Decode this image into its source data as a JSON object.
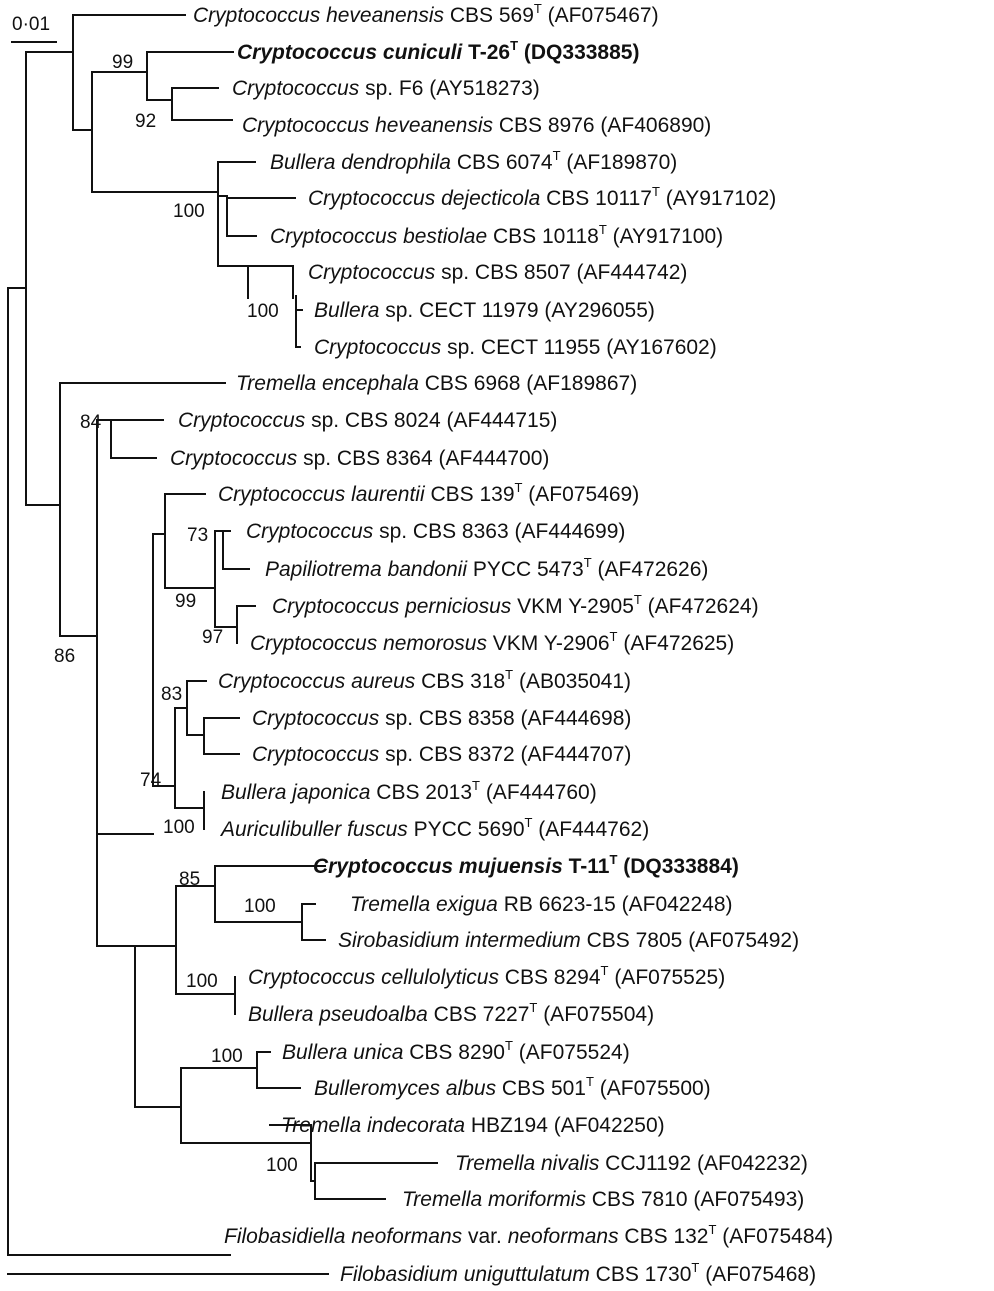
{
  "scale_bar": {
    "label": "0·01"
  },
  "taxa": [
    {
      "id": "t1",
      "genus": "Cryptococcus",
      "epithet": "heveanensis",
      "rest": " CBS 569",
      "type": true,
      "acc": "(AF075467)"
    },
    {
      "id": "t2",
      "genus": "Cryptococcus",
      "epithet": "cuniculi",
      "rest": " T-26",
      "type": true,
      "acc": "(DQ333885)",
      "bold": true
    },
    {
      "id": "t3",
      "genus": "Cryptococcus",
      "epithet": "",
      "rest": "sp. F6",
      "type": false,
      "acc": "(AY518273)"
    },
    {
      "id": "t4",
      "genus": "Cryptococcus",
      "epithet": "heveanensis",
      "rest": " CBS 8976",
      "type": false,
      "acc": "(AF406890)"
    },
    {
      "id": "t5",
      "genus": "Bullera",
      "epithet": "dendrophila",
      "rest": " CBS 6074",
      "type": true,
      "acc": "(AF189870)"
    },
    {
      "id": "t6",
      "genus": "Cryptococcus",
      "epithet": "dejecticola",
      "rest": " CBS 10117",
      "type": true,
      "acc": "(AY917102)"
    },
    {
      "id": "t7",
      "genus": "Cryptococcus",
      "epithet": "bestiolae",
      "rest": " CBS 10118",
      "type": true,
      "acc": "(AY917100)"
    },
    {
      "id": "t8",
      "genus": "Cryptococcus",
      "epithet": "",
      "rest": "sp. CBS 8507",
      "type": false,
      "acc": "(AF444742)"
    },
    {
      "id": "t9",
      "genus": "Bullera",
      "epithet": "",
      "rest": "sp. CECT 11979",
      "type": false,
      "acc": "(AY296055)"
    },
    {
      "id": "t10",
      "genus": "Cryptococcus",
      "epithet": "",
      "rest": "sp. CECT 11955",
      "type": false,
      "acc": "(AY167602)"
    },
    {
      "id": "t11",
      "genus": "Tremella",
      "epithet": "encephala",
      "rest": " CBS 6968",
      "type": false,
      "acc": "(AF189867)"
    },
    {
      "id": "t12",
      "genus": "Cryptococcus",
      "epithet": "",
      "rest": "sp. CBS 8024",
      "type": false,
      "acc": "(AF444715)"
    },
    {
      "id": "t13",
      "genus": "Cryptococcus",
      "epithet": "",
      "rest": "sp. CBS 8364",
      "type": false,
      "acc": "(AF444700)"
    },
    {
      "id": "t14",
      "genus": "Cryptococcus",
      "epithet": "laurentii",
      "rest": " CBS 139",
      "type": true,
      "acc": "(AF075469)"
    },
    {
      "id": "t15",
      "genus": "Cryptococcus",
      "epithet": "",
      "rest": "sp. CBS 8363",
      "type": false,
      "acc": "(AF444699)"
    },
    {
      "id": "t16",
      "genus": "Papiliotrema",
      "epithet": "bandonii",
      "rest": " PYCC 5473",
      "type": true,
      "acc": "(AF472626)"
    },
    {
      "id": "t17",
      "genus": "Cryptococcus",
      "epithet": "perniciosus",
      "rest": " VKM Y-2905",
      "type": true,
      "acc": "(AF472624)"
    },
    {
      "id": "t18",
      "genus": "Cryptococcus",
      "epithet": "nemorosus",
      "rest": " VKM Y-2906",
      "type": true,
      "acc": "(AF472625)"
    },
    {
      "id": "t19",
      "genus": "Cryptococcus",
      "epithet": "aureus",
      "rest": " CBS 318",
      "type": true,
      "acc": "(AB035041)"
    },
    {
      "id": "t20",
      "genus": "Cryptococcus",
      "epithet": "",
      "rest": "sp. CBS 8358",
      "type": false,
      "acc": "(AF444698)"
    },
    {
      "id": "t21",
      "genus": "Cryptococcus",
      "epithet": "",
      "rest": "sp. CBS 8372",
      "type": false,
      "acc": "(AF444707)"
    },
    {
      "id": "t22",
      "genus": "Bullera",
      "epithet": "japonica",
      "rest": " CBS 2013",
      "type": true,
      "acc": "(AF444760)"
    },
    {
      "id": "t23",
      "genus": "Auriculibuller",
      "epithet": "fuscus",
      "rest": " PYCC 5690",
      "type": true,
      "acc": "(AF444762)"
    },
    {
      "id": "t24",
      "genus": "Cryptococcus",
      "epithet": "mujuensis",
      "rest": " T-11",
      "type": true,
      "acc": "(DQ333884)",
      "bold": true
    },
    {
      "id": "t25",
      "genus": "Tremella",
      "epithet": "exigua",
      "rest": " RB 6623-15",
      "type": false,
      "acc": "(AF042248)"
    },
    {
      "id": "t26",
      "genus": "Sirobasidium",
      "epithet": "intermedium",
      "rest": " CBS 7805",
      "type": false,
      "acc": "(AF075492)"
    },
    {
      "id": "t27",
      "genus": "Cryptococcus",
      "epithet": "cellulolyticus",
      "rest": " CBS 8294",
      "type": true,
      "acc": "(AF075525)"
    },
    {
      "id": "t28",
      "genus": "Bullera",
      "epithet": "pseudoalba",
      "rest": " CBS 7227",
      "type": true,
      "acc": "(AF075504)"
    },
    {
      "id": "t29",
      "genus": "Bullera",
      "epithet": "unica",
      "rest": " CBS 8290",
      "type": true,
      "acc": "(AF075524)"
    },
    {
      "id": "t30",
      "genus": "Bulleromyces",
      "epithet": "albus",
      "rest": " CBS 501",
      "type": true,
      "acc": "(AF075500)"
    },
    {
      "id": "t31",
      "genus": "Tremella",
      "epithet": "indecorata",
      "rest": " HBZ194",
      "type": false,
      "acc": "(AF042250)"
    },
    {
      "id": "t32",
      "genus": "Tremella",
      "epithet": "nivalis",
      "rest": " CCJ1192",
      "type": false,
      "acc": "(AF042232)"
    },
    {
      "id": "t33",
      "genus": "Tremella",
      "epithet": "moriformis",
      "rest": " CBS 7810",
      "type": false,
      "acc": "(AF075493)"
    },
    {
      "id": "t34",
      "genus": "Filobasidiella",
      "epithet": "neoformans",
      "rest": " var. ",
      "epithet2": "neoformans",
      "rest2": " CBS 132",
      "type": true,
      "acc": "(AF075484)"
    },
    {
      "id": "t35",
      "genus": "Filobasidium",
      "epithet": "uniguttulatum",
      "rest": " CBS 1730",
      "type": true,
      "acc": "(AF075468)"
    }
  ],
  "bootstrap": [
    "99",
    "92",
    "100",
    "100",
    "84",
    "73",
    "99",
    "97",
    "86",
    "83",
    "74",
    "100",
    "85",
    "100",
    "100",
    "100",
    "100"
  ]
}
